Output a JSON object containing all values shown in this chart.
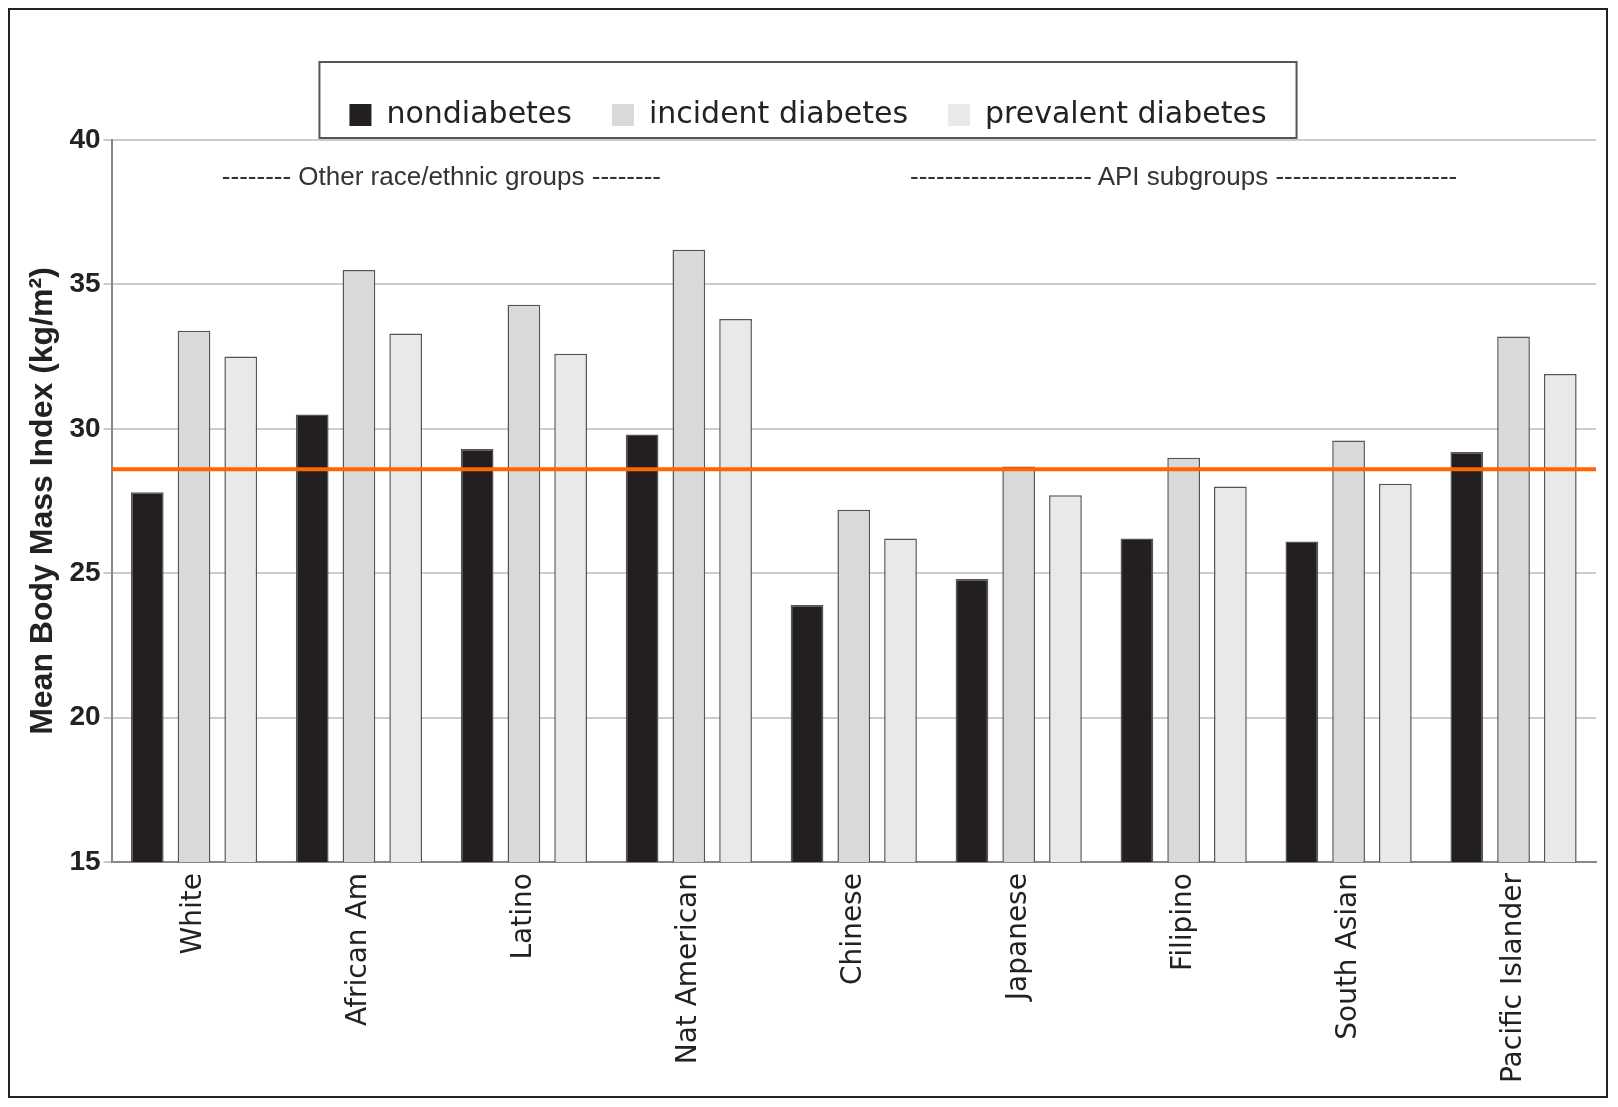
{
  "chart_data": {
    "type": "bar",
    "ylabel": "Mean Body Mass Index (kg/m²)",
    "categories": [
      "White",
      "African Am",
      "Latino",
      "Nat American",
      "Chinese",
      "Japanese",
      "Filipino",
      "South Asian",
      "Pacific Islander"
    ],
    "series": [
      {
        "name": "nondiabetes",
        "color": "#231f20",
        "values": [
          27.8,
          30.5,
          29.3,
          29.8,
          23.9,
          24.8,
          26.2,
          26.1,
          29.2
        ]
      },
      {
        "name": "incident diabetes",
        "color": "#d9d9d9",
        "values": [
          33.4,
          35.5,
          34.3,
          36.2,
          27.2,
          28.7,
          29.0,
          29.6,
          33.2
        ]
      },
      {
        "name": "prevalent diabetes",
        "color": "#e9e9e9",
        "values": [
          32.5,
          33.3,
          32.6,
          33.8,
          26.2,
          27.7,
          28.0,
          28.1,
          31.9
        ]
      }
    ],
    "ylim": [
      15,
      40
    ],
    "yticks": [
      15,
      20,
      25,
      30,
      35,
      40
    ],
    "grid": "y",
    "legend": "top",
    "ref_lines": [
      {
        "axis": "y",
        "value": 28.6,
        "color": "#ff6600"
      }
    ],
    "annotations": [
      "-------- Other race/ethnic groups --------",
      "--------------------- API subgroups ---------------------"
    ]
  }
}
